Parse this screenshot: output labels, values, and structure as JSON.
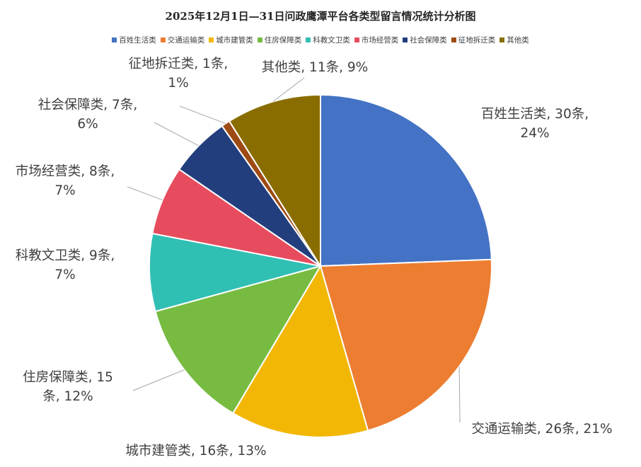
{
  "chart_data": {
    "type": "pie",
    "title": "2025年12月1日—31日问政鹰潭平台各类型留言情况统计分析图",
    "unit": "条",
    "legend_position": "top",
    "slices": [
      {
        "name": "百姓生活类",
        "value": 30,
        "percent": "24%",
        "color": "#4472C4",
        "label_lines": [
          "百姓生活类, 30条,",
          "24%"
        ]
      },
      {
        "name": "交通运输类",
        "value": 26,
        "percent": "21%",
        "color": "#ED7D31",
        "label_lines": [
          "交通运输类, 26条, 21%"
        ]
      },
      {
        "name": "城市建管类",
        "value": 16,
        "percent": "13%",
        "color": "#F2B705",
        "label_lines": [
          "城市建管类, 16条, 13%"
        ]
      },
      {
        "name": "住房保障类",
        "value": 15,
        "percent": "12%",
        "color": "#77BB41",
        "label_lines": [
          "住房保障类, 15",
          "条, 12%"
        ]
      },
      {
        "name": "科教文卫类",
        "value": 9,
        "percent": "7%",
        "color": "#30BFB3",
        "label_lines": [
          "科教文卫类, 9条,",
          "7%"
        ]
      },
      {
        "name": "市场经营类",
        "value": 8,
        "percent": "7%",
        "color": "#E64C5E",
        "label_lines": [
          "市场经营类, 8条,",
          "7%"
        ]
      },
      {
        "name": "社会保障类",
        "value": 7,
        "percent": "6%",
        "color": "#233E7D",
        "label_lines": [
          "社会保障类, 7条,",
          "6%"
        ]
      },
      {
        "name": "征地拆迁类",
        "value": 1,
        "percent": "1%",
        "color": "#9E4A14",
        "label_lines": [
          "征地拆迁类, 1条,",
          "1%"
        ]
      },
      {
        "name": "其他类",
        "value": 11,
        "percent": "9%",
        "color": "#8A6D00",
        "label_lines": [
          "其他类, 11条, 9%"
        ]
      }
    ]
  }
}
